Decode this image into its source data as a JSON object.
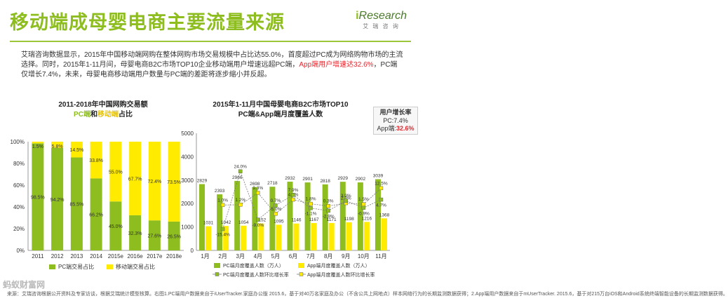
{
  "page": {
    "title": "移动端成母婴电商主要流量来源",
    "logo_brand": "Research",
    "logo_letter": "i",
    "logo_sub": "艾 瑞 咨 询",
    "intro_before": "艾瑞咨询数据显示，2015年中国移动端网购在整体网购市场交易规模中占比达55.0%，首度超过PC成为网络购物市场的主流选择。同时，2015年1-11月间，母婴电商B2C市场TOP10企业移动端用户增速远超PC端，",
    "intro_highlight": "App端用户增速达32.6%",
    "intro_after": "，PC端仅增长7.4%，未来，母婴电商移动端用户数量与PC端的差距将逐步缩小并反超。",
    "stats_header": "用户增长率",
    "stats_pc": "PC:7.4%",
    "stats_app_label": "App端:",
    "stats_app_value": "32.6%",
    "footer": "来源：艾瑞咨询根据公开资料及专家访谈，根据艾瑞统计模型核算。右图1.PC端用户数据来自于iUserTracker.家庭办公版 2015.6，基于对40万名家庭及办公（不含公共上网地点）样本网络行为的长期监测数据获得；2.App端用户数据来自于mUserTracker. 2015.6，基于对215万台iOS和Android系统终端智能设备的长期监测数据获得。",
    "watermark": "蚂蚁财富网",
    "watermark_url": "www.mayi.com"
  },
  "chart_data": [
    {
      "type": "bar",
      "stacked": true,
      "title": "2011-2018年中国网购交易额",
      "subtitle_pc": "PC端",
      "subtitle_and": "和",
      "subtitle_mobile": "移动端",
      "subtitle_end": "占比",
      "categories": [
        "2011",
        "2012",
        "2013",
        "2014",
        "2015e",
        "2016e",
        "2017e",
        "2018e"
      ],
      "ylim": [
        0,
        100
      ],
      "yticks": [
        "0%",
        "20%",
        "40%",
        "60%",
        "80%",
        "100%"
      ],
      "series": [
        {
          "name": "PC端交易占比",
          "color": "#8dbd1e",
          "values": [
            98.5,
            94.2,
            85.5,
            66.2,
            45.0,
            32.3,
            27.6,
            26.5
          ],
          "labels": [
            "98.5%",
            "94.2%",
            "85.5%",
            "66.2%",
            "45.0%",
            "32.3%",
            "27.6%",
            "26.5%"
          ]
        },
        {
          "name": "移动端交易占比",
          "color": "#ffeb00",
          "values": [
            1.5,
            5.8,
            14.5,
            33.8,
            55.0,
            67.7,
            72.4,
            73.5
          ],
          "labels": [
            "1.5%",
            "5.8%",
            "14.5%",
            "33.8%",
            "55.0%",
            "67.7%",
            "72.4%",
            "73.5%"
          ]
        }
      ],
      "legend": "bottom",
      "grid": false
    },
    {
      "type": "bar",
      "title": "2015年1-11月中国母婴电商B2C市场TOP10",
      "subtitle": "PC端&App端月度覆盖人数",
      "categories": [
        "1月",
        "2月",
        "3月",
        "4月",
        "5月",
        "6月",
        "7月",
        "8月",
        "9月",
        "10月",
        "11月"
      ],
      "ylim": [
        0,
        5000
      ],
      "yticks": [
        "0",
        "1000",
        "2000",
        "3000",
        "4000",
        "5000"
      ],
      "y2lim": [
        -30,
        50
      ],
      "series": [
        {
          "name": "PC端月度覆盖人数（万人）",
          "color": "#8dbd1e",
          "values": [
            2829,
            2393,
            2966,
            2698,
            2718,
            2932,
            2901,
            2818,
            2929,
            2902,
            3039
          ]
        },
        {
          "name": "App端月度覆盖人数（万人）",
          "color": "#ffeb00",
          "values": [
            1031,
            1042,
            1054,
            1152,
            1095,
            1146,
            1167,
            1171,
            1198,
            1216,
            1368
          ]
        },
        {
          "name": "PC端月度覆盖人数环比增长率",
          "color": "#8dbd1e",
          "axis": "y2",
          "values": [
            null,
            -15.4,
            24.0,
            -9.0,
            0.7,
            7.9,
            -1.1,
            -2.9,
            3.9,
            -0.9,
            4.7
          ],
          "labels": [
            "",
            "-15.4%",
            "24.0%",
            "-9.0%",
            "0.7%",
            "7.9%",
            "-1.1%",
            "-2.9%",
            "3.9%",
            "-0.9%",
            "4.7%"
          ]
        },
        {
          "name": "App端月度覆盖人数环比增长率",
          "color": "#ffeb00",
          "axis": "y2",
          "values": [
            null,
            1.0,
            1.2,
            9.3,
            -5.0,
            4.7,
            1.8,
            0.3,
            2.3,
            1.5,
            12.5
          ],
          "labels": [
            "",
            "1.0%",
            "1.2%",
            "9.3%",
            "-5.0%",
            "4.7%",
            "1.8%",
            "0.3%",
            "2.3%",
            "1.5%",
            "12.5%"
          ]
        }
      ],
      "legend": "bottom"
    }
  ]
}
